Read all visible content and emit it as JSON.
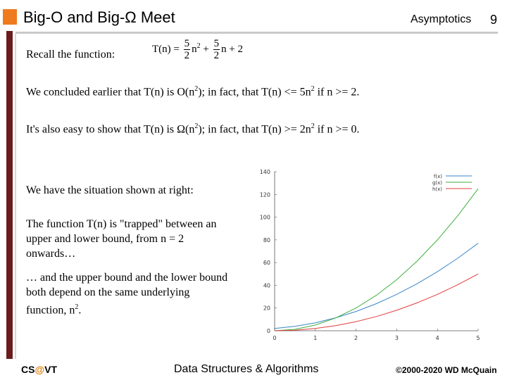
{
  "header": {
    "title": "Big-O and Big-Ω Meet",
    "section": "Asymptotics",
    "page_number": "9"
  },
  "body": {
    "recall_label": "Recall the function:",
    "formula": {
      "lhs": "T(n) =",
      "a_num": "5",
      "a_den": "2",
      "n2": "n",
      "n2_exp": "2",
      "plus1": "+",
      "b_num": "5",
      "b_den": "2",
      "tail": "n + 2"
    },
    "line1": {
      "pre": "We concluded earlier that T(n) is O(n",
      "sup": "2",
      "mid": "); in fact, that T(n) <= 5n",
      "sup2": "2",
      "post": " if n >= 2."
    },
    "line2": {
      "pre": "It's also easy to show that T(n) is Ω(n",
      "sup": "2",
      "mid": "); in fact, that T(n) >= 2n",
      "sup2": "2",
      "post": " if n >= 0."
    },
    "situation": "We have the situation shown at right:",
    "trapped": "The function T(n) is \"trapped\" between an upper and lower bound, from n = 2 onwards…",
    "bounds": {
      "pre": "… and the upper bound and the lower bound both depend on the same underlying function, n",
      "sup": "2",
      "post": "."
    }
  },
  "chart_data": {
    "type": "line",
    "title": "",
    "xlabel": "",
    "ylabel": "",
    "xlim": [
      0,
      5
    ],
    "ylim": [
      0,
      140
    ],
    "x_ticks": [
      "0",
      "1",
      "2",
      "3",
      "4",
      "5"
    ],
    "y_ticks": [
      "0",
      "20",
      "40",
      "60",
      "80",
      "100",
      "120",
      "140"
    ],
    "grid": false,
    "legend_position": "top-right",
    "series": [
      {
        "name": "f(x)",
        "color": "#3a86c8",
        "x": [
          0,
          0.5,
          1,
          1.5,
          2,
          2.5,
          3,
          3.5,
          4,
          4.5,
          5
        ],
        "y": [
          2,
          3.88,
          7,
          11.38,
          17,
          23.88,
          32,
          41.38,
          52,
          63.88,
          77
        ]
      },
      {
        "name": "g(x)",
        "color": "#3fae3f",
        "x": [
          0,
          0.5,
          1,
          1.5,
          2,
          2.5,
          3,
          3.5,
          4,
          4.5,
          5
        ],
        "y": [
          0,
          1.25,
          5,
          11.25,
          20,
          31.25,
          45,
          61.25,
          80,
          101.25,
          125
        ]
      },
      {
        "name": "h(x)",
        "color": "#e03c3c",
        "x": [
          0,
          0.5,
          1,
          1.5,
          2,
          2.5,
          3,
          3.5,
          4,
          4.5,
          5
        ],
        "y": [
          0,
          0.5,
          2,
          4.5,
          8,
          12.5,
          18,
          24.5,
          32,
          40.5,
          50
        ]
      }
    ]
  },
  "footer": {
    "left_pre": "CS",
    "left_at": "@",
    "left_post": "VT",
    "center": "Data Structures & Algorithms",
    "right": "©2000-2020 WD McQuain"
  }
}
